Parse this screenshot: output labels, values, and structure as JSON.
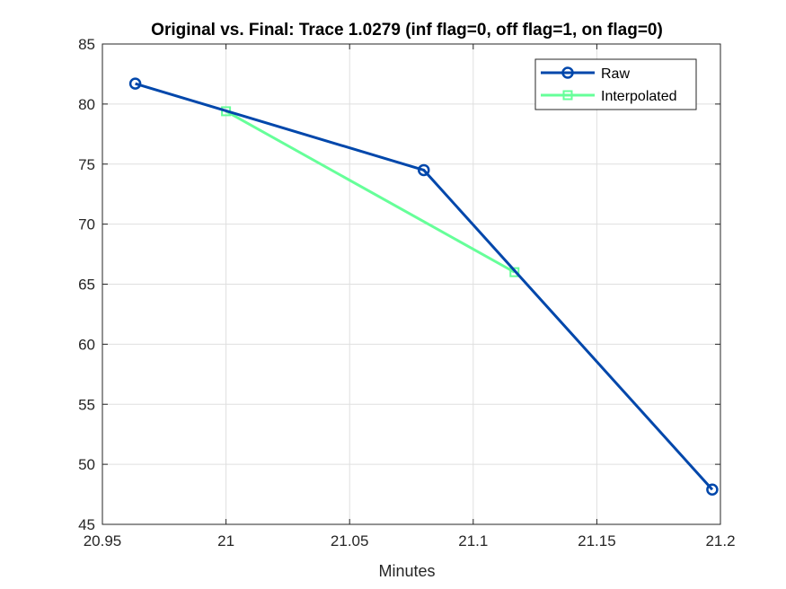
{
  "chart_data": {
    "type": "line",
    "title": "Original vs. Final: Trace 1.0279 (inf flag=0, off flag=1, on flag=0)",
    "xlabel": "Minutes",
    "ylabel": "",
    "xlim": [
      20.95,
      21.2
    ],
    "ylim": [
      45,
      85
    ],
    "xticks": [
      20.95,
      21,
      21.05,
      21.1,
      21.15,
      21.2
    ],
    "xtick_labels": [
      "20.95",
      "21",
      "21.05",
      "21.1",
      "21.15",
      "21.2"
    ],
    "yticks": [
      45,
      50,
      55,
      60,
      65,
      70,
      75,
      80,
      85
    ],
    "ytick_labels": [
      "45",
      "50",
      "55",
      "60",
      "65",
      "70",
      "75",
      "80",
      "85"
    ],
    "grid": true,
    "legend_position": "top-right",
    "series": [
      {
        "name": "Raw",
        "color": "#0047ab",
        "marker": "circle",
        "x": [
          20.9633,
          21.08,
          21.1967
        ],
        "y": [
          81.7,
          74.5,
          47.9
        ]
      },
      {
        "name": "Interpolated",
        "color": "#66ff99",
        "marker": "square",
        "x": [
          21.0,
          21.1167
        ],
        "y": [
          79.4,
          66.0
        ]
      }
    ]
  }
}
